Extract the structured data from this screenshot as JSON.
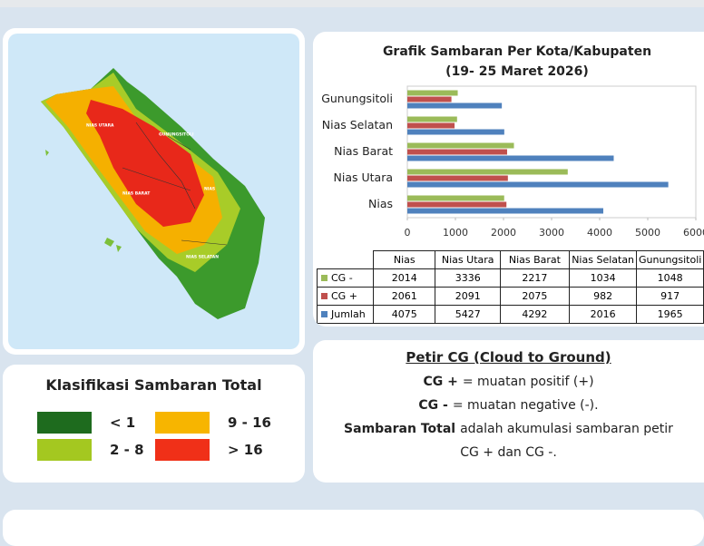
{
  "chart_data": {
    "type": "bar",
    "orientation": "horizontal",
    "title": "Grafik Sambaran Per Kota/Kabupaten",
    "subtitle": "(19- 25 Maret 2026)",
    "categories": [
      "Nias",
      "Nias Utara",
      "Nias Barat",
      "Nias Selatan",
      "Gunungsitoli"
    ],
    "series": [
      {
        "name": "CG -",
        "color": "#9bbb59",
        "values": [
          2014,
          3336,
          2217,
          1034,
          1048
        ]
      },
      {
        "name": "CG +",
        "color": "#c0504d",
        "values": [
          2061,
          2091,
          2075,
          982,
          917
        ]
      },
      {
        "name": "Jumlah",
        "color": "#4f81bd",
        "values": [
          4075,
          5427,
          4292,
          2016,
          1965
        ]
      }
    ],
    "xlim": [
      0,
      6000
    ],
    "xticks": [
      0,
      1000,
      2000,
      3000,
      4000,
      5000,
      6000
    ],
    "grid": false
  },
  "map": {
    "labels": [
      "NIAS UTARA",
      "GUNUNGSITOLI",
      "NIAS BARAT",
      "NIAS",
      "NIAS SELATAN"
    ]
  },
  "legend": {
    "title": "Klasifikasi Sambaran Total",
    "items": [
      {
        "label": "< 1",
        "color": "#1e6b1e"
      },
      {
        "label": "9 - 16",
        "color": "#f7b500"
      },
      {
        "label": "2 - 8",
        "color": "#a4c820"
      },
      {
        "label": "> 16",
        "color": "#f03018"
      }
    ]
  },
  "info": {
    "title": "Petir CG (Cloud to Ground)",
    "lines": [
      {
        "bold": "CG +",
        "text": "= muatan positif (+)"
      },
      {
        "bold": "CG -",
        "text": "= muatan negative (-)."
      },
      {
        "bold": "Sambaran Total",
        "text": "adalah akumulasi sambaran petir"
      },
      {
        "text": "CG + dan CG -."
      }
    ]
  }
}
